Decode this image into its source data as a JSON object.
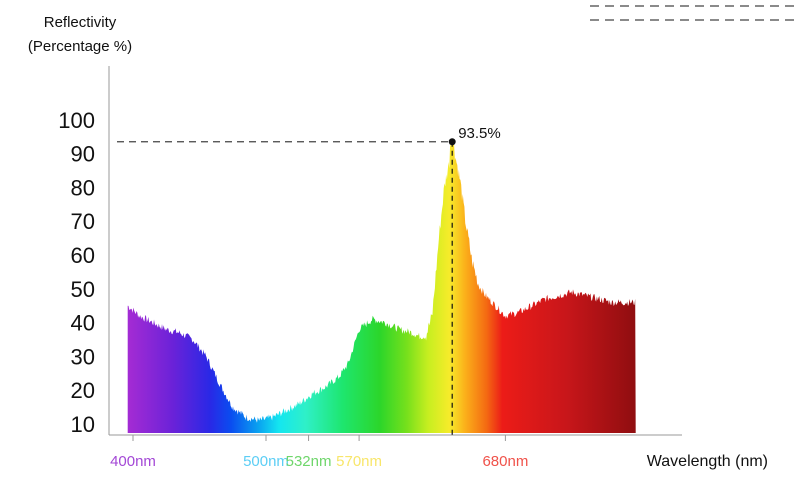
{
  "chart_data": {
    "type": "area",
    "ylabel_lines": [
      "Reflectivity",
      "(Percentage %)"
    ],
    "xlabel": "Wavelength (nm)",
    "ylim": [
      5,
      100
    ],
    "xlim": [
      390,
      800
    ],
    "y_ticks": [
      100,
      90,
      80,
      70,
      60,
      50,
      40,
      30,
      20,
      10
    ],
    "x_ticks": [
      {
        "value": 400,
        "label": "400nm",
        "color": "#a347d6"
      },
      {
        "value": 500,
        "label": "500nm",
        "color": "#5ccef5"
      },
      {
        "value": 532,
        "label": "532nm",
        "color": "#6fd66b"
      },
      {
        "value": 570,
        "label": "570nm",
        "color": "#f8e66a"
      },
      {
        "value": 680,
        "label": "680nm",
        "color": "#f0524a"
      }
    ],
    "peak": {
      "x": 640,
      "y": 93.5,
      "label": "93.5%"
    },
    "series": [
      {
        "x": [
          396,
          405,
          415,
          425,
          435,
          445,
          455,
          465,
          475,
          485,
          495,
          505,
          515,
          525,
          535,
          545,
          555,
          562,
          570,
          580,
          590,
          600,
          610,
          615,
          620,
          625,
          630,
          634,
          638,
          640,
          642,
          646,
          650,
          655,
          660,
          665,
          670,
          680,
          690,
          700,
          710,
          720,
          730,
          740,
          750,
          760,
          770,
          778
        ],
        "y": [
          45,
          42,
          40,
          38,
          37,
          35,
          30,
          22,
          15,
          12,
          11,
          12,
          14,
          16,
          19,
          21,
          24,
          28,
          38,
          41,
          40,
          38,
          37,
          36,
          36,
          42,
          65,
          80,
          88,
          93.5,
          90,
          82,
          70,
          58,
          51,
          48,
          46,
          42,
          43,
          45,
          47,
          48,
          49,
          48,
          47,
          46,
          46,
          46
        ]
      }
    ],
    "colors": {
      "axis": "#9a9a9a",
      "dash": "#444444",
      "text": "#111111"
    }
  }
}
